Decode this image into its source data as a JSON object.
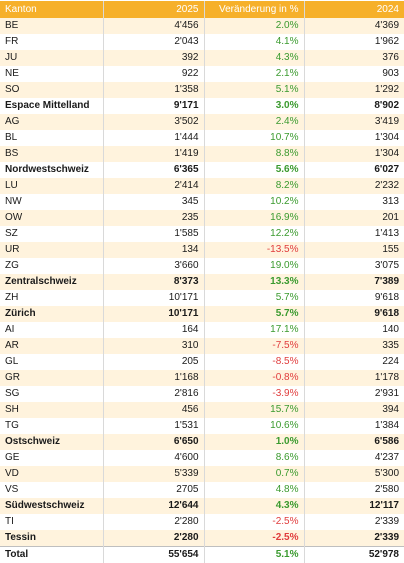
{
  "colors": {
    "header": "#f6b02a",
    "stripe": "#fff3dd",
    "positive": "#3a9a2e",
    "negative": "#e03c3c"
  },
  "header": {
    "kanton": "Kanton",
    "y2025": "2025",
    "change": "Veränderung in %",
    "y2024": "2024"
  },
  "rows": [
    {
      "kanton": "BE",
      "y2025": "4'456",
      "change": "2.0%",
      "y2024": "4'369",
      "bold": false,
      "neg": false
    },
    {
      "kanton": "FR",
      "y2025": "2'043",
      "change": "4.1%",
      "y2024": "1'962",
      "bold": false,
      "neg": false
    },
    {
      "kanton": "JU",
      "y2025": "392",
      "change": "4.3%",
      "y2024": "376",
      "bold": false,
      "neg": false
    },
    {
      "kanton": "NE",
      "y2025": "922",
      "change": "2.1%",
      "y2024": "903",
      "bold": false,
      "neg": false
    },
    {
      "kanton": "SO",
      "y2025": "1'358",
      "change": "5.1%",
      "y2024": "1'292",
      "bold": false,
      "neg": false
    },
    {
      "kanton": "Espace Mittelland",
      "y2025": "9'171",
      "change": "3.0%",
      "y2024": "8'902",
      "bold": true,
      "neg": false
    },
    {
      "kanton": "AG",
      "y2025": "3'502",
      "change": "2.4%",
      "y2024": "3'419",
      "bold": false,
      "neg": false
    },
    {
      "kanton": "BL",
      "y2025": "1'444",
      "change": "10.7%",
      "y2024": "1'304",
      "bold": false,
      "neg": false
    },
    {
      "kanton": "BS",
      "y2025": "1'419",
      "change": "8.8%",
      "y2024": "1'304",
      "bold": false,
      "neg": false
    },
    {
      "kanton": "Nordwestschweiz",
      "y2025": "6'365",
      "change": "5.6%",
      "y2024": "6'027",
      "bold": true,
      "neg": false
    },
    {
      "kanton": "LU",
      "y2025": "2'414",
      "change": "8.2%",
      "y2024": "2'232",
      "bold": false,
      "neg": false
    },
    {
      "kanton": "NW",
      "y2025": "345",
      "change": "10.2%",
      "y2024": "313",
      "bold": false,
      "neg": false
    },
    {
      "kanton": "OW",
      "y2025": "235",
      "change": "16.9%",
      "y2024": "201",
      "bold": false,
      "neg": false
    },
    {
      "kanton": "SZ",
      "y2025": "1'585",
      "change": "12.2%",
      "y2024": "1'413",
      "bold": false,
      "neg": false
    },
    {
      "kanton": "UR",
      "y2025": "134",
      "change": "-13.5%",
      "y2024": "155",
      "bold": false,
      "neg": true
    },
    {
      "kanton": "ZG",
      "y2025": "3'660",
      "change": "19.0%",
      "y2024": "3'075",
      "bold": false,
      "neg": false
    },
    {
      "kanton": "Zentralschweiz",
      "y2025": "8'373",
      "change": "13.3%",
      "y2024": "7'389",
      "bold": true,
      "neg": false
    },
    {
      "kanton": "ZH",
      "y2025": "10'171",
      "change": "5.7%",
      "y2024": "9'618",
      "bold": false,
      "neg": false
    },
    {
      "kanton": "Zürich",
      "y2025": "10'171",
      "change": "5.7%",
      "y2024": "9'618",
      "bold": true,
      "neg": false
    },
    {
      "kanton": "AI",
      "y2025": "164",
      "change": "17.1%",
      "y2024": "140",
      "bold": false,
      "neg": false
    },
    {
      "kanton": "AR",
      "y2025": "310",
      "change": "-7.5%",
      "y2024": "335",
      "bold": false,
      "neg": true
    },
    {
      "kanton": "GL",
      "y2025": "205",
      "change": "-8.5%",
      "y2024": "224",
      "bold": false,
      "neg": true
    },
    {
      "kanton": "GR",
      "y2025": "1'168",
      "change": "-0.8%",
      "y2024": "1'178",
      "bold": false,
      "neg": true
    },
    {
      "kanton": "SG",
      "y2025": "2'816",
      "change": "-3.9%",
      "y2024": "2'931",
      "bold": false,
      "neg": true
    },
    {
      "kanton": "SH",
      "y2025": "456",
      "change": "15.7%",
      "y2024": "394",
      "bold": false,
      "neg": false
    },
    {
      "kanton": "TG",
      "y2025": "1'531",
      "change": "10.6%",
      "y2024": "1'384",
      "bold": false,
      "neg": false
    },
    {
      "kanton": "Ostschweiz",
      "y2025": "6'650",
      "change": "1.0%",
      "y2024": "6'586",
      "bold": true,
      "neg": false
    },
    {
      "kanton": "GE",
      "y2025": "4'600",
      "change": "8.6%",
      "y2024": "4'237",
      "bold": false,
      "neg": false
    },
    {
      "kanton": "VD",
      "y2025": "5'339",
      "change": "0.7%",
      "y2024": "5'300",
      "bold": false,
      "neg": false
    },
    {
      "kanton": "VS",
      "y2025": "2705",
      "change": "4.8%",
      "y2024": "2'580",
      "bold": false,
      "neg": false
    },
    {
      "kanton": "Südwestschweiz",
      "y2025": "12'644",
      "change": "4.3%",
      "y2024": "12'117",
      "bold": true,
      "neg": false
    },
    {
      "kanton": "TI",
      "y2025": "2'280",
      "change": "-2.5%",
      "y2024": "2'339",
      "bold": false,
      "neg": true
    },
    {
      "kanton": "Tessin",
      "y2025": "2'280",
      "change": "-2.5%",
      "y2024": "2'339",
      "bold": true,
      "neg": true
    }
  ],
  "total": {
    "kanton": "Total",
    "y2025": "55'654",
    "change": "5.1%",
    "y2024": "52'978"
  }
}
